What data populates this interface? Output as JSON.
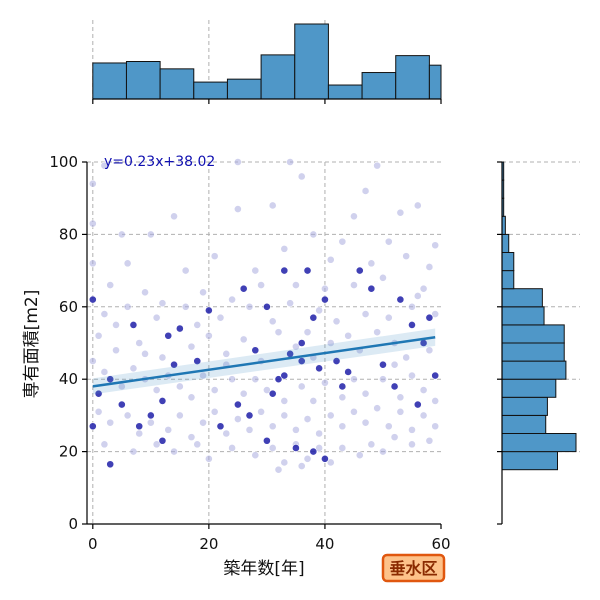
{
  "chart_data": {
    "type": "scatter",
    "equation": "y=0.23x+38.02",
    "xlabel": "築年数[年]",
    "ylabel": "専有面積[m2]",
    "xlim": [
      -1,
      60
    ],
    "ylim": [
      0,
      100
    ],
    "xticks": [
      0,
      20,
      40,
      60
    ],
    "yticks": [
      0,
      20,
      40,
      60,
      80,
      100
    ],
    "grid": true,
    "regression": {
      "slope": 0.23,
      "intercept": 38.02
    },
    "badge": "垂水区",
    "top_histogram": {
      "bin_edges": [
        0,
        5.8,
        11.6,
        17.4,
        23.2,
        29.0,
        34.8,
        40.6,
        46.4,
        52.2,
        58.0,
        60
      ],
      "counts": [
        49,
        51,
        41,
        23,
        27,
        60,
        102,
        19,
        36,
        59,
        46
      ]
    },
    "right_histogram": {
      "bin_edges": [
        15,
        20,
        25,
        30,
        35,
        40,
        45,
        50,
        55,
        60,
        65,
        70,
        75,
        80,
        85,
        90,
        95,
        100
      ],
      "counts": [
        33,
        44,
        26,
        27,
        32,
        38,
        37,
        37,
        25,
        24,
        7,
        7,
        4,
        2,
        1,
        1,
        1
      ]
    },
    "points": [
      [
        3,
        16.5,
        "dark"
      ],
      [
        12,
        23,
        "dark"
      ],
      [
        30,
        23,
        "dark"
      ],
      [
        38,
        20,
        "dark"
      ],
      [
        40,
        18,
        "dark"
      ],
      [
        35,
        21,
        "dark"
      ],
      [
        22,
        27,
        "dark"
      ],
      [
        10,
        30,
        "dark"
      ],
      [
        8,
        27,
        "dark"
      ],
      [
        27,
        30,
        "dark"
      ],
      [
        32,
        40,
        "dark"
      ],
      [
        34,
        47,
        "dark"
      ],
      [
        36,
        50,
        "dark"
      ],
      [
        36,
        45,
        "dark"
      ],
      [
        39,
        43,
        "dark"
      ],
      [
        31,
        36,
        "dark"
      ],
      [
        33,
        41,
        "dark"
      ],
      [
        44,
        42,
        "dark"
      ],
      [
        46,
        70,
        "dark"
      ],
      [
        48,
        65,
        "dark"
      ],
      [
        37,
        70,
        "dark"
      ],
      [
        40,
        62,
        "dark"
      ],
      [
        53,
        62,
        "dark"
      ],
      [
        55,
        55,
        "dark"
      ],
      [
        57,
        50,
        "dark"
      ],
      [
        58,
        57,
        "dark"
      ],
      [
        20,
        59,
        "dark"
      ],
      [
        15,
        54,
        "dark"
      ],
      [
        14,
        44,
        "dark"
      ],
      [
        18,
        45,
        "dark"
      ],
      [
        13,
        52,
        "dark"
      ],
      [
        7,
        55,
        "dark"
      ],
      [
        5,
        33,
        "dark"
      ],
      [
        12,
        34,
        "dark"
      ],
      [
        25,
        33,
        "dark"
      ],
      [
        0,
        62,
        "dark"
      ],
      [
        0,
        27,
        "dark"
      ],
      [
        1,
        36,
        "dark"
      ],
      [
        3,
        40,
        "dark"
      ],
      [
        28,
        48,
        "dark"
      ],
      [
        30,
        60,
        "dark"
      ],
      [
        33,
        70,
        "dark"
      ],
      [
        42,
        45,
        "dark"
      ],
      [
        43,
        38,
        "dark"
      ],
      [
        50,
        44,
        "dark"
      ],
      [
        52,
        38,
        "dark"
      ],
      [
        56,
        33,
        "dark"
      ],
      [
        59,
        41,
        "dark"
      ],
      [
        26,
        65,
        "dark"
      ],
      [
        38,
        57,
        "dark"
      ],
      [
        2,
        99,
        "light"
      ],
      [
        0,
        94,
        "light"
      ],
      [
        25,
        100,
        "light"
      ],
      [
        34,
        100,
        "light"
      ],
      [
        49,
        99,
        "light"
      ],
      [
        36,
        96,
        "light"
      ],
      [
        47,
        92,
        "light"
      ],
      [
        53,
        86,
        "light"
      ],
      [
        56,
        88,
        "light"
      ],
      [
        45,
        85,
        "light"
      ],
      [
        31,
        88,
        "light"
      ],
      [
        14,
        85,
        "light"
      ],
      [
        10,
        80,
        "light"
      ],
      [
        5,
        80,
        "light"
      ],
      [
        0,
        83,
        "light"
      ],
      [
        25,
        87,
        "light"
      ],
      [
        38,
        80,
        "light"
      ],
      [
        43,
        78,
        "light"
      ],
      [
        51,
        78,
        "light"
      ],
      [
        59,
        77,
        "light"
      ],
      [
        33,
        76,
        "light"
      ],
      [
        21,
        74,
        "light"
      ],
      [
        16,
        70,
        "light"
      ],
      [
        28,
        70,
        "light"
      ],
      [
        6,
        72,
        "light"
      ],
      [
        0,
        72,
        "light"
      ],
      [
        41,
        73,
        "light"
      ],
      [
        48,
        72,
        "light"
      ],
      [
        54,
        74,
        "light"
      ],
      [
        58,
        71,
        "light"
      ],
      [
        3,
        66,
        "light"
      ],
      [
        9,
        64,
        "light"
      ],
      [
        19,
        64,
        "light"
      ],
      [
        24,
        62,
        "light"
      ],
      [
        29,
        66,
        "light"
      ],
      [
        35,
        66,
        "light"
      ],
      [
        45,
        66,
        "light"
      ],
      [
        50,
        68,
        "light"
      ],
      [
        57,
        65,
        "light"
      ],
      [
        2,
        58,
        "light"
      ],
      [
        6,
        60,
        "light"
      ],
      [
        11,
        57,
        "light"
      ],
      [
        16,
        60,
        "light"
      ],
      [
        22,
        57,
        "light"
      ],
      [
        27,
        60,
        "light"
      ],
      [
        31,
        56,
        "light"
      ],
      [
        39,
        59,
        "light"
      ],
      [
        42,
        56,
        "light"
      ],
      [
        47,
        58,
        "light"
      ],
      [
        51,
        57,
        "light"
      ],
      [
        55,
        60,
        "light"
      ],
      [
        59,
        58,
        "light"
      ],
      [
        1,
        52,
        "light"
      ],
      [
        4,
        48,
        "light"
      ],
      [
        8,
        50,
        "light"
      ],
      [
        12,
        46,
        "light"
      ],
      [
        17,
        49,
        "light"
      ],
      [
        20,
        52,
        "light"
      ],
      [
        23,
        47,
        "light"
      ],
      [
        26,
        51,
        "light"
      ],
      [
        29,
        45,
        "light"
      ],
      [
        32,
        53,
        "light"
      ],
      [
        35,
        49,
        "light"
      ],
      [
        37,
        53,
        "light"
      ],
      [
        41,
        50,
        "light"
      ],
      [
        44,
        52,
        "light"
      ],
      [
        46,
        48,
        "light"
      ],
      [
        49,
        53,
        "light"
      ],
      [
        52,
        50,
        "light"
      ],
      [
        54,
        46,
        "light"
      ],
      [
        58,
        48,
        "light"
      ],
      [
        0,
        45,
        "light"
      ],
      [
        2,
        42,
        "light"
      ],
      [
        5,
        38,
        "light"
      ],
      [
        7,
        43,
        "light"
      ],
      [
        9,
        40,
        "light"
      ],
      [
        11,
        37,
        "light"
      ],
      [
        13,
        41,
        "light"
      ],
      [
        15,
        38,
        "light"
      ],
      [
        17,
        35,
        "light"
      ],
      [
        19,
        41,
        "light"
      ],
      [
        21,
        37,
        "light"
      ],
      [
        24,
        40,
        "light"
      ],
      [
        26,
        36,
        "light"
      ],
      [
        28,
        40,
        "light"
      ],
      [
        30,
        37,
        "light"
      ],
      [
        33,
        34,
        "light"
      ],
      [
        36,
        38,
        "light"
      ],
      [
        38,
        34,
        "light"
      ],
      [
        40,
        39,
        "light"
      ],
      [
        43,
        35,
        "light"
      ],
      [
        45,
        40,
        "light"
      ],
      [
        47,
        36,
        "light"
      ],
      [
        50,
        40,
        "light"
      ],
      [
        53,
        35,
        "light"
      ],
      [
        55,
        41,
        "light"
      ],
      [
        57,
        37,
        "light"
      ],
      [
        59,
        34,
        "light"
      ],
      [
        1,
        31,
        "light"
      ],
      [
        3,
        28,
        "light"
      ],
      [
        6,
        30,
        "light"
      ],
      [
        8,
        25,
        "light"
      ],
      [
        10,
        28,
        "light"
      ],
      [
        13,
        26,
        "light"
      ],
      [
        15,
        30,
        "light"
      ],
      [
        17,
        24,
        "light"
      ],
      [
        19,
        28,
        "light"
      ],
      [
        21,
        31,
        "light"
      ],
      [
        23,
        25,
        "light"
      ],
      [
        25,
        29,
        "light"
      ],
      [
        27,
        26,
        "light"
      ],
      [
        29,
        31,
        "light"
      ],
      [
        31,
        27,
        "light"
      ],
      [
        33,
        30,
        "light"
      ],
      [
        35,
        26,
        "light"
      ],
      [
        37,
        29,
        "light"
      ],
      [
        39,
        25,
        "light"
      ],
      [
        41,
        30,
        "light"
      ],
      [
        43,
        27,
        "light"
      ],
      [
        45,
        31,
        "light"
      ],
      [
        47,
        28,
        "light"
      ],
      [
        49,
        32,
        "light"
      ],
      [
        51,
        27,
        "light"
      ],
      [
        53,
        31,
        "light"
      ],
      [
        55,
        26,
        "light"
      ],
      [
        57,
        30,
        "light"
      ],
      [
        59,
        27,
        "light"
      ],
      [
        2,
        22,
        "light"
      ],
      [
        7,
        20,
        "light"
      ],
      [
        11,
        22,
        "light"
      ],
      [
        14,
        20,
        "light"
      ],
      [
        18,
        22,
        "light"
      ],
      [
        20,
        18,
        "light"
      ],
      [
        24,
        21,
        "light"
      ],
      [
        28,
        19,
        "light"
      ],
      [
        31,
        21,
        "light"
      ],
      [
        33,
        17,
        "light"
      ],
      [
        35,
        22,
        "light"
      ],
      [
        37,
        18,
        "light"
      ],
      [
        39,
        21,
        "light"
      ],
      [
        41,
        17,
        "light"
      ],
      [
        43,
        21,
        "light"
      ],
      [
        46,
        19,
        "light"
      ],
      [
        48,
        22,
        "light"
      ],
      [
        50,
        20,
        "light"
      ],
      [
        52,
        24,
        "light"
      ],
      [
        55,
        22,
        "light"
      ],
      [
        58,
        23,
        "light"
      ],
      [
        32,
        15,
        "light"
      ],
      [
        36,
        16,
        "light"
      ],
      [
        12,
        61,
        "light"
      ],
      [
        18,
        55,
        "light"
      ],
      [
        34,
        61,
        "light"
      ],
      [
        40,
        65,
        "light"
      ],
      [
        56,
        63,
        "light"
      ],
      [
        4,
        55,
        "light"
      ],
      [
        9,
        47,
        "light"
      ],
      [
        23,
        44,
        "light"
      ],
      [
        38,
        46,
        "light"
      ],
      [
        52,
        44,
        "light"
      ]
    ]
  }
}
